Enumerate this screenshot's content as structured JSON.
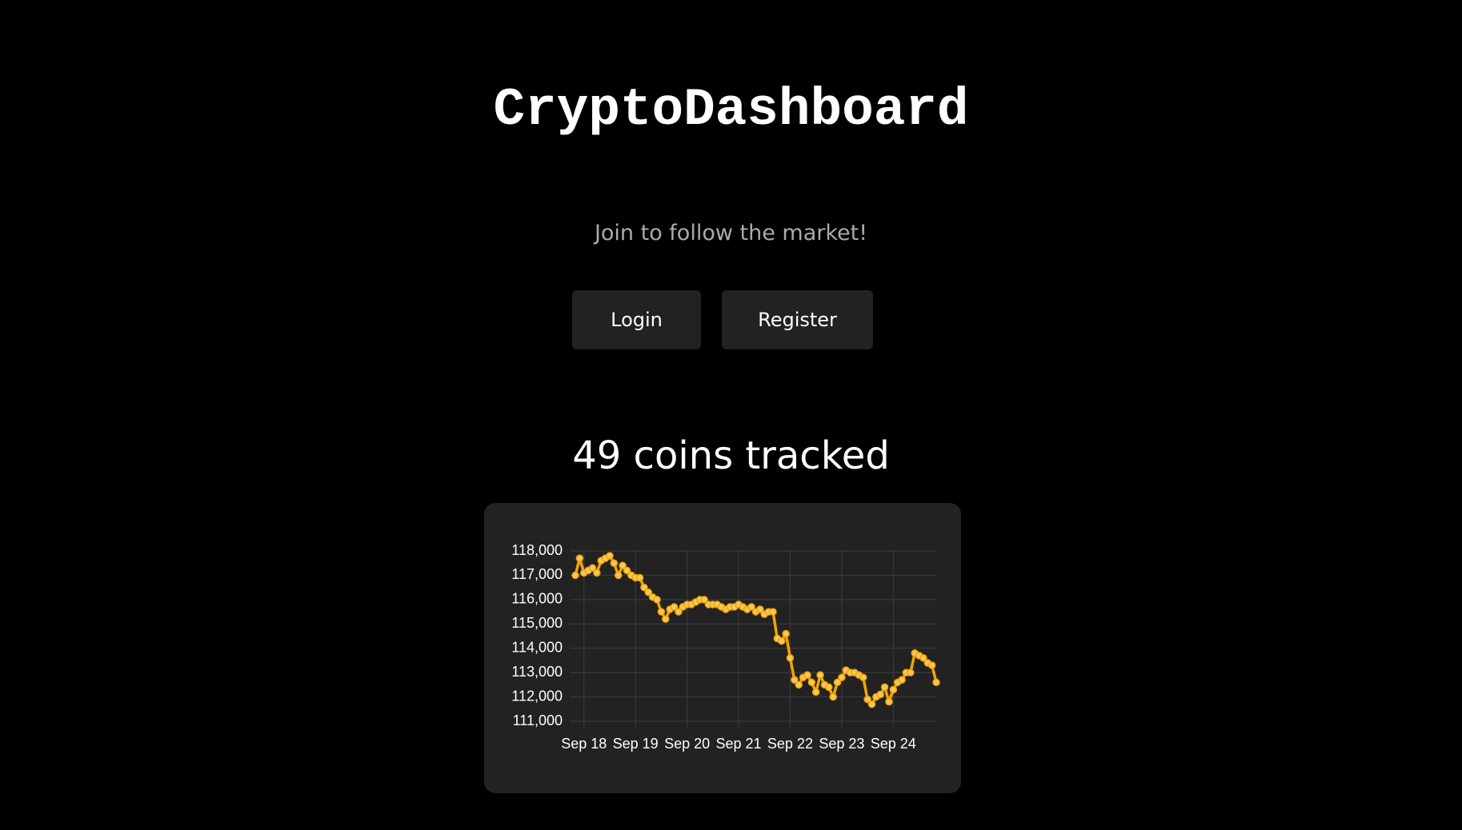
{
  "header": {
    "title": "CryptoDashboard",
    "subtitle": "Join to follow the market!"
  },
  "buttons": [
    "Login",
    "Register"
  ],
  "stats": "49 coins tracked",
  "chart_data": {
    "type": "line",
    "color": "#f0a500",
    "grid": true,
    "categories": [
      null,
      null,
      "Sep 18",
      null,
      null,
      null,
      null,
      null,
      null,
      null,
      null,
      null,
      null,
      null,
      "Sep 19",
      null,
      null,
      null,
      null,
      null,
      null,
      null,
      null,
      null,
      null,
      null,
      "Sep 20",
      null,
      null,
      null,
      null,
      null,
      null,
      null,
      null,
      null,
      null,
      null,
      "Sep 21",
      null,
      null,
      null,
      null,
      null,
      null,
      null,
      null,
      null,
      null,
      null,
      "Sep 22",
      null,
      null,
      null,
      null,
      null,
      null,
      null,
      null,
      null,
      null,
      null,
      "Sep 23",
      null,
      null,
      null,
      null,
      null,
      null,
      null,
      null,
      null,
      null,
      null,
      "Sep 24",
      null,
      null,
      null,
      null,
      null,
      null,
      null,
      null,
      null,
      null
    ],
    "values": [
      117000,
      117700,
      117100,
      117200,
      117300,
      117100,
      117600,
      117700,
      117800,
      117500,
      117000,
      117400,
      117200,
      117000,
      116900,
      116900,
      116500,
      116300,
      116100,
      116000,
      115500,
      115200,
      115600,
      115700,
      115500,
      115700,
      115800,
      115800,
      115900,
      116000,
      116000,
      115800,
      115800,
      115800,
      115700,
      115600,
      115700,
      115700,
      115800,
      115700,
      115600,
      115700,
      115500,
      115600,
      115400,
      115500,
      115500,
      114400,
      114300,
      114600,
      113600,
      112700,
      112500,
      112800,
      112900,
      112600,
      112200,
      112900,
      112500,
      112400,
      112000,
      112600,
      112800,
      113100,
      113000,
      113000,
      112900,
      112800,
      111900,
      111700,
      112000,
      112100,
      112400,
      111800,
      112300,
      112600,
      112700,
      113000,
      113000,
      113800,
      113700,
      113600,
      113400,
      113300,
      112600
    ],
    "ylim": [
      111000,
      118000
    ],
    "yticks": [
      {
        "value": 111000,
        "label": "111,000"
      },
      {
        "value": 112000,
        "label": "112,000"
      },
      {
        "value": 113000,
        "label": "113,000"
      },
      {
        "value": 114000,
        "label": "114,000"
      },
      {
        "value": 115000,
        "label": "115,000"
      },
      {
        "value": 116000,
        "label": "116,000"
      },
      {
        "value": 117000,
        "label": "117,000"
      },
      {
        "value": 118000,
        "label": "118,000"
      }
    ]
  }
}
